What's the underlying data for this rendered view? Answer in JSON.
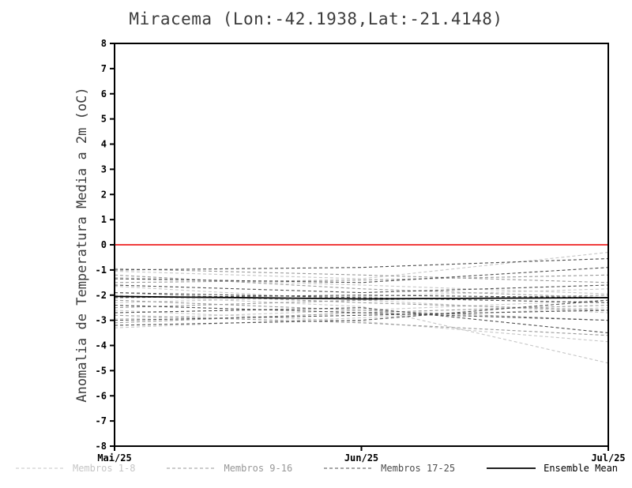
{
  "title": "Miracema (Lon:-42.1938,Lat:-21.4148)",
  "chart_data": {
    "type": "line",
    "title": "Miracema (Lon:-42.1938,Lat:-21.4148)",
    "xlabel": "",
    "ylabel": "Anomalia de Temperatura Media a 2m (oC)",
    "ylim": [
      -8,
      8
    ],
    "y_tick_step": 1,
    "x": [
      0,
      1,
      2
    ],
    "x_tick_labels": [
      "Mai/25",
      "Jun/25",
      "Jul/25"
    ],
    "grid": false,
    "legend_position": "bottom",
    "zero_line_color": "#f03c3c",
    "axis_color": "#000000",
    "groups": [
      {
        "name": "Membros 1-8",
        "color": "#c6c6c6",
        "dash": "4,3",
        "width": 1.1
      },
      {
        "name": "Membros 9-16",
        "color": "#989898",
        "dash": "4,3",
        "width": 1.1
      },
      {
        "name": "Membros 17-25",
        "color": "#4d4d4d",
        "dash": "4,3",
        "width": 1.1
      },
      {
        "name": "Ensemble Mean",
        "color": "#000000",
        "dash": "",
        "width": 1.8
      }
    ],
    "series": [
      {
        "name": "Membro 1",
        "group": 0,
        "values": [
          -1.05,
          -1.35,
          -0.3
        ]
      },
      {
        "name": "Membro 2",
        "group": 0,
        "values": [
          -1.3,
          -1.6,
          -1.95
        ]
      },
      {
        "name": "Membro 3",
        "group": 0,
        "values": [
          -1.65,
          -2.2,
          -2.7
        ]
      },
      {
        "name": "Membro 4",
        "group": 0,
        "values": [
          -2.0,
          -2.45,
          -4.7
        ]
      },
      {
        "name": "Membro 5",
        "group": 0,
        "values": [
          -2.3,
          -2.05,
          -1.75
        ]
      },
      {
        "name": "Membro 6",
        "group": 0,
        "values": [
          -2.6,
          -3.05,
          -3.85
        ]
      },
      {
        "name": "Membro 7",
        "group": 0,
        "values": [
          -2.95,
          -2.6,
          -2.2
        ]
      },
      {
        "name": "Membro 8",
        "group": 0,
        "values": [
          -3.3,
          -2.9,
          -2.5
        ]
      },
      {
        "name": "Membro 9",
        "group": 1,
        "values": [
          -0.95,
          -1.2,
          -1.5
        ]
      },
      {
        "name": "Membro 10",
        "group": 1,
        "values": [
          -1.2,
          -1.75,
          -2.1
        ]
      },
      {
        "name": "Membro 11",
        "group": 1,
        "values": [
          -1.5,
          -1.4,
          -1.2
        ]
      },
      {
        "name": "Membro 12",
        "group": 1,
        "values": [
          -1.9,
          -2.3,
          -2.6
        ]
      },
      {
        "name": "Membro 13",
        "group": 1,
        "values": [
          -2.2,
          -2.6,
          -3.0
        ]
      },
      {
        "name": "Membro 14",
        "group": 1,
        "values": [
          -2.5,
          -2.2,
          -2.0
        ]
      },
      {
        "name": "Membro 15",
        "group": 1,
        "values": [
          -2.8,
          -3.1,
          -3.6
        ]
      },
      {
        "name": "Membro 16",
        "group": 1,
        "values": [
          -3.1,
          -2.7,
          -2.4
        ]
      },
      {
        "name": "Membro 17",
        "group": 2,
        "values": [
          -1.0,
          -0.9,
          -0.55
        ]
      },
      {
        "name": "Membro 18",
        "group": 2,
        "values": [
          -1.35,
          -1.5,
          -0.9
        ]
      },
      {
        "name": "Membro 19",
        "group": 2,
        "values": [
          -1.6,
          -1.9,
          -1.6
        ]
      },
      {
        "name": "Membro 20",
        "group": 2,
        "values": [
          -1.9,
          -2.1,
          -2.3
        ]
      },
      {
        "name": "Membro 21",
        "group": 2,
        "values": [
          -2.1,
          -2.0,
          -2.1
        ]
      },
      {
        "name": "Membro 22",
        "group": 2,
        "values": [
          -2.4,
          -2.7,
          -3.0
        ]
      },
      {
        "name": "Membro 23",
        "group": 2,
        "values": [
          -2.7,
          -2.5,
          -3.5
        ]
      },
      {
        "name": "Membro 24",
        "group": 2,
        "values": [
          -3.0,
          -2.8,
          -2.6
        ]
      },
      {
        "name": "Membro 25",
        "group": 2,
        "values": [
          -3.2,
          -3.0,
          -2.2
        ]
      },
      {
        "name": "Ensemble Mean",
        "group": 3,
        "values": [
          -2.05,
          -2.15,
          -2.1
        ]
      }
    ]
  }
}
